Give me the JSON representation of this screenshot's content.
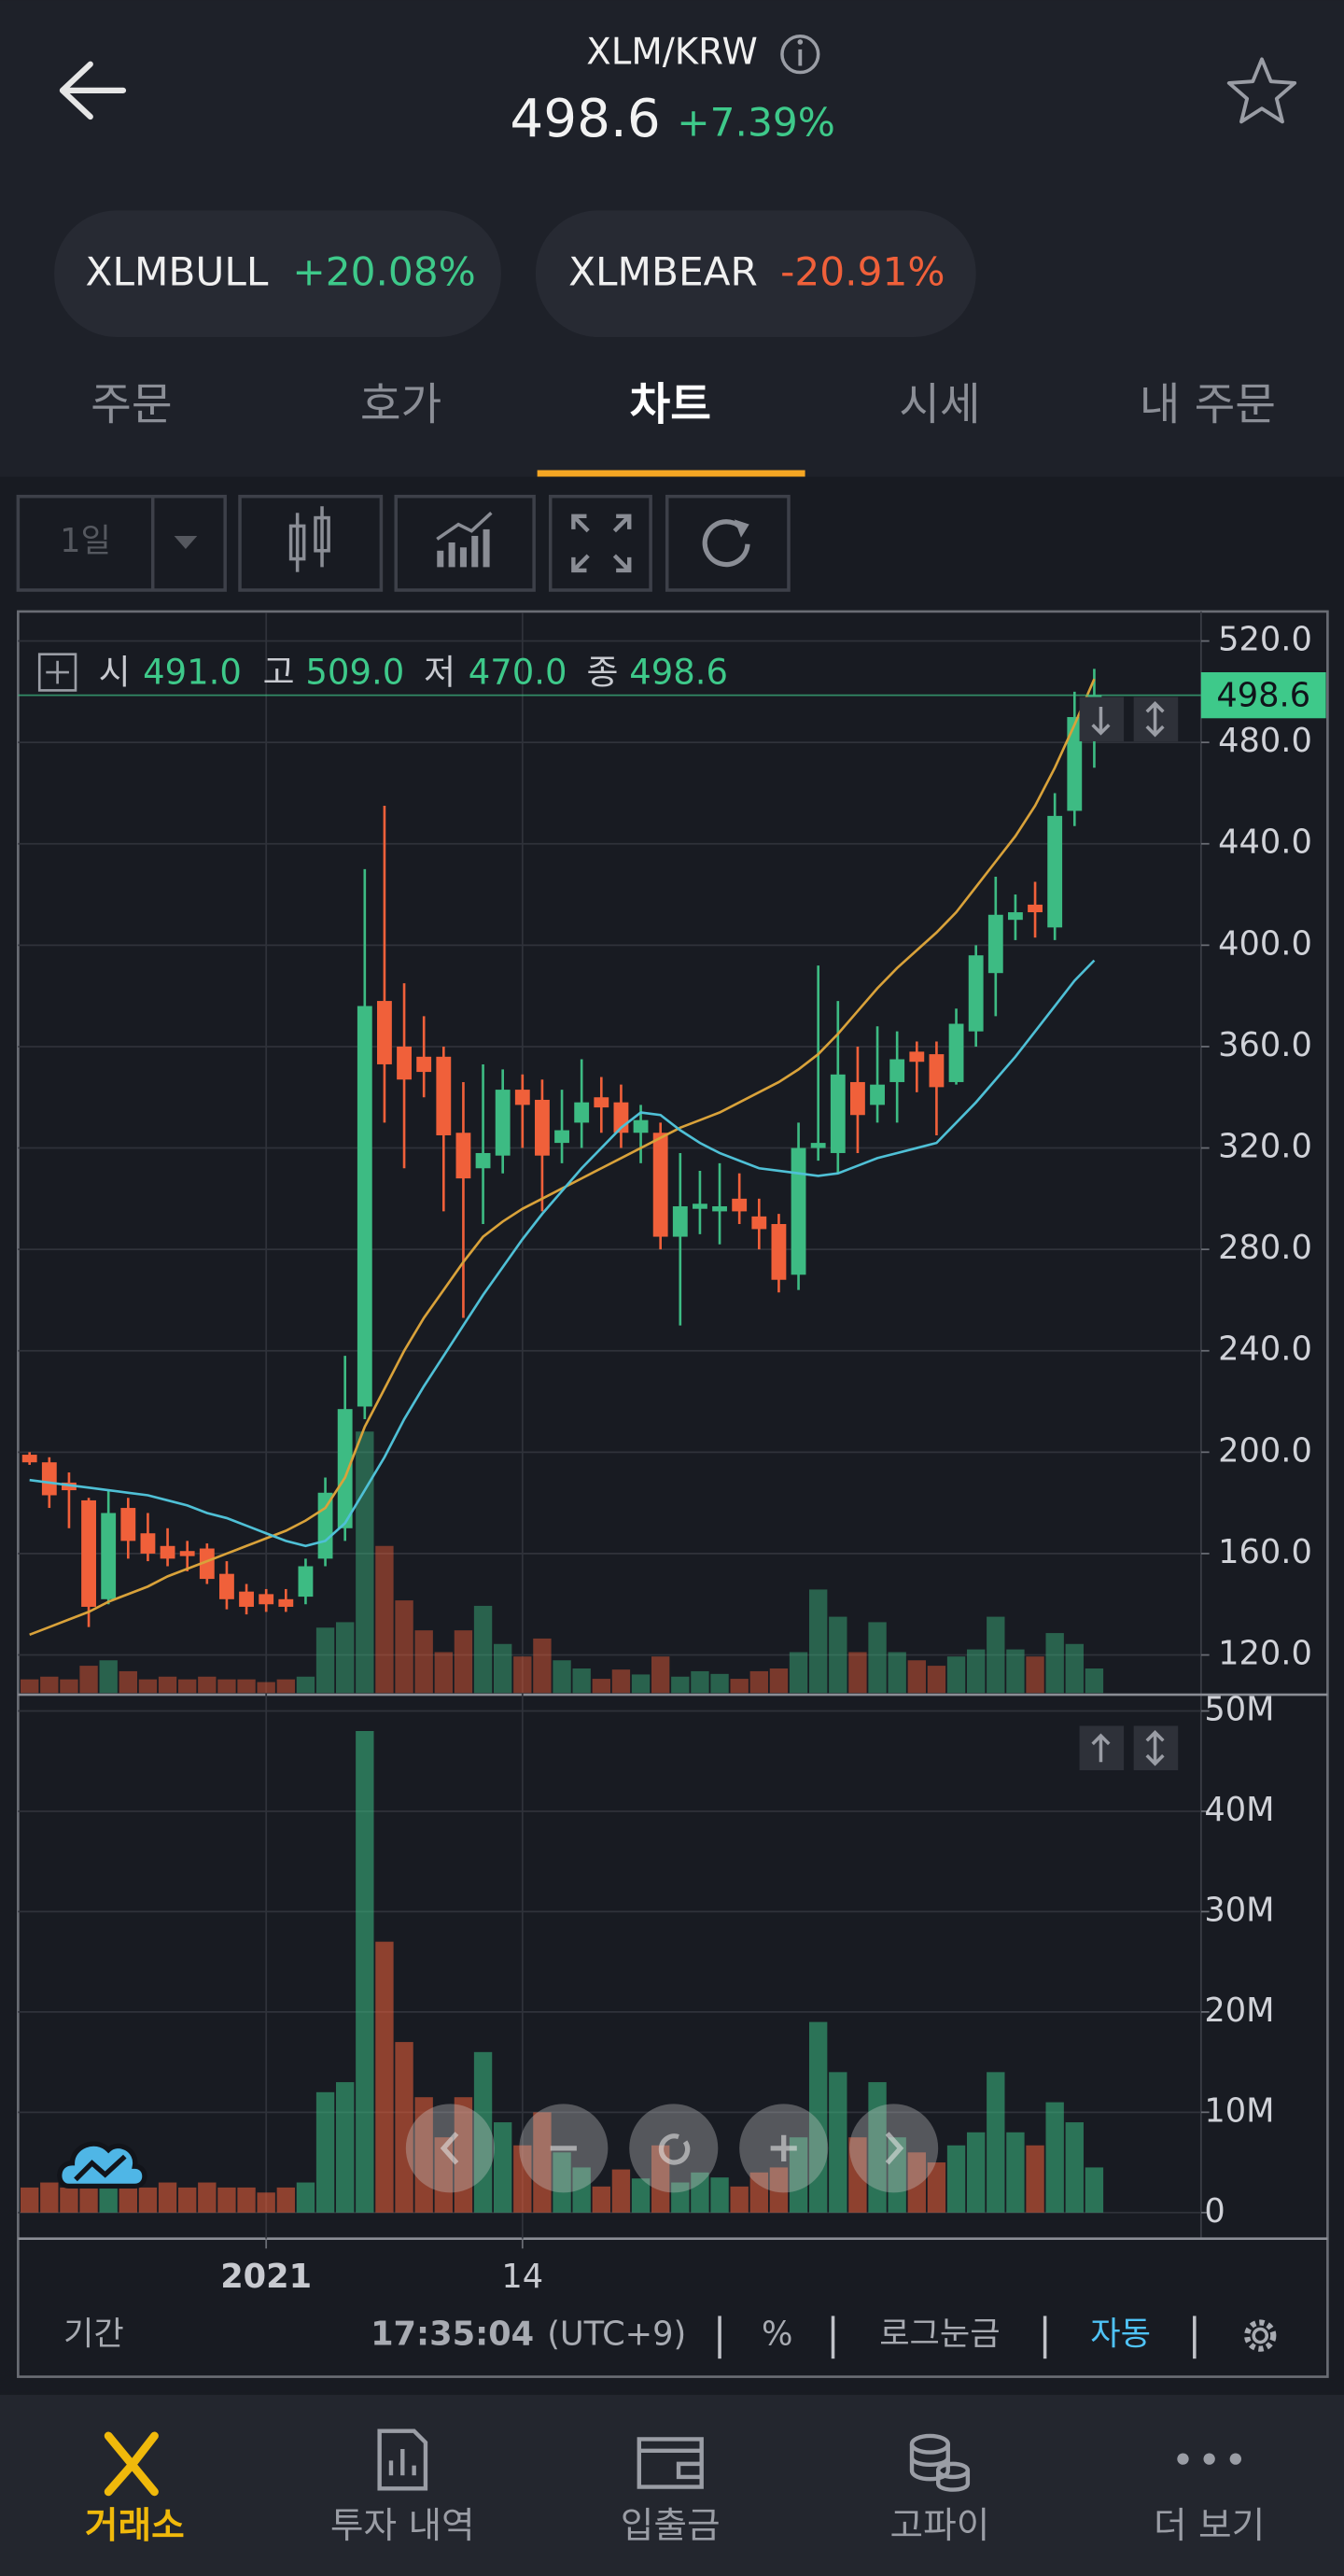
{
  "header": {
    "symbol": "XLM/KRW",
    "price": "498.6",
    "change": "+7.39%"
  },
  "tickers": [
    {
      "name": "XLMBULL",
      "change": "+20.08%"
    },
    {
      "name": "XLMBEAR",
      "change": "-20.91%"
    }
  ],
  "tabs": [
    "주문",
    "호가",
    "차트",
    "시세",
    "내 주문"
  ],
  "toolbar": {
    "interval": "1일"
  },
  "chart_data": [
    {
      "type": "candlestick",
      "up_color": "#3dbb83",
      "down_color": "#f0603a",
      "grid": true,
      "ohlc_legend": [
        {
          "label": "시",
          "value": "491.0"
        },
        {
          "label": "고",
          "value": "509.0"
        },
        {
          "label": "저",
          "value": "470.0"
        },
        {
          "label": "종",
          "value": "498.6"
        }
      ],
      "last_price": {
        "value": 498.6,
        "label": "498.6"
      },
      "ylim": [
        105,
        531
      ],
      "yticks": [
        {
          "value": 520,
          "label": "520.0"
        },
        {
          "value": 480,
          "label": "480.0"
        },
        {
          "value": 440,
          "label": "440.0"
        },
        {
          "value": 400,
          "label": "400.0"
        },
        {
          "value": 360,
          "label": "360.0"
        },
        {
          "value": 320,
          "label": "320.0"
        },
        {
          "value": 280,
          "label": "280.0"
        },
        {
          "value": 240,
          "label": "240.0"
        },
        {
          "value": 200,
          "label": "200.0"
        },
        {
          "value": 160,
          "label": "160.0"
        },
        {
          "value": 120,
          "label": "120.0"
        }
      ],
      "open": [
        199,
        196,
        188,
        181,
        142,
        178,
        168,
        163,
        161,
        162,
        152,
        145,
        144,
        142,
        143,
        158,
        170,
        218,
        378,
        360,
        356,
        356,
        326,
        312,
        317,
        343,
        339,
        322,
        330,
        340,
        338,
        326,
        326,
        285,
        296,
        295,
        300,
        293,
        290,
        270,
        320,
        318,
        346,
        337,
        346,
        358,
        357,
        346,
        366,
        389,
        410,
        416,
        407,
        453,
        491
      ],
      "high": [
        200,
        198,
        192,
        182,
        185,
        182,
        176,
        170,
        165,
        164,
        157,
        148,
        146,
        146,
        158,
        190,
        238,
        430,
        455,
        385,
        372,
        360,
        346,
        353,
        351,
        349,
        347,
        343,
        355,
        348,
        345,
        337,
        330,
        318,
        311,
        314,
        310,
        300,
        294,
        330,
        392,
        378,
        360,
        368,
        366,
        362,
        362,
        375,
        400,
        427,
        420,
        425,
        460,
        500,
        509
      ],
      "low": [
        195,
        178,
        170,
        131,
        140,
        158,
        157,
        155,
        153,
        148,
        138,
        136,
        137,
        137,
        140,
        155,
        165,
        213,
        330,
        312,
        340,
        295,
        253,
        290,
        310,
        320,
        295,
        314,
        320,
        326,
        320,
        314,
        280,
        250,
        286,
        282,
        290,
        280,
        263,
        264,
        315,
        310,
        318,
        330,
        330,
        342,
        325,
        345,
        360,
        372,
        402,
        403,
        402,
        447,
        470
      ],
      "close": [
        196,
        183,
        185,
        139,
        176,
        165,
        160,
        158,
        159,
        150,
        142,
        139,
        140,
        139,
        155,
        184,
        217,
        376,
        353,
        347,
        350,
        325,
        308,
        318,
        343,
        337,
        317,
        327,
        338,
        336,
        326,
        331,
        285,
        297,
        298,
        297,
        295,
        288,
        268,
        320,
        322,
        349,
        333,
        345,
        355,
        354,
        344,
        369,
        396,
        412,
        413,
        413,
        451,
        490,
        498.6
      ],
      "moving_averages": [
        {
          "color": "#d9a23a",
          "values": [
            128,
            131,
            134,
            137,
            141,
            144,
            147,
            151,
            154,
            157,
            160,
            163,
            166,
            169,
            173,
            178,
            190,
            210,
            225,
            240,
            253,
            264,
            275,
            285,
            291,
            296,
            300,
            304,
            308,
            312,
            316,
            320,
            324,
            328,
            331,
            334,
            338,
            342,
            346,
            351,
            357,
            365,
            374,
            383,
            391,
            398,
            405,
            413,
            423,
            433,
            443,
            455,
            470,
            487,
            505
          ]
        },
        {
          "color": "#4fc0d6",
          "values": [
            189,
            188,
            187,
            186,
            185,
            184,
            183,
            181,
            179,
            176,
            174,
            171,
            168,
            165,
            163,
            165,
            172,
            185,
            198,
            213,
            226,
            238,
            250,
            262,
            273,
            284,
            294,
            303,
            312,
            320,
            328,
            334,
            333,
            327,
            322,
            318,
            315,
            312,
            311,
            310,
            309,
            310,
            313,
            316,
            318,
            320,
            322,
            330,
            338,
            347,
            356,
            366,
            376,
            386,
            394
          ]
        }
      ]
    },
    {
      "type": "bar",
      "grid": true,
      "categories": [
        null,
        null,
        null,
        null,
        null,
        null,
        null,
        null,
        null,
        null,
        null,
        null,
        "2021",
        null,
        null,
        null,
        null,
        null,
        null,
        null,
        null,
        null,
        null,
        null,
        null,
        "14",
        null,
        null,
        null,
        null,
        null,
        null,
        null,
        null,
        null,
        null,
        null,
        null,
        null,
        null,
        null,
        null,
        null,
        null,
        null,
        null,
        null,
        null,
        null,
        null,
        null,
        null,
        null,
        null,
        null
      ],
      "values": [
        2500000,
        3000000,
        2500000,
        5000000,
        6000000,
        4000000,
        2500000,
        3000000,
        2500000,
        3000000,
        2500000,
        2500000,
        2000000,
        2500000,
        3000000,
        12000000,
        13000000,
        48000000,
        27000000,
        17000000,
        11500000,
        7500000,
        11500000,
        16000000,
        9000000,
        6700000,
        10000000,
        6000000,
        4500000,
        2600000,
        4300000,
        3400000,
        6700000,
        3000000,
        4000000,
        3500000,
        2600000,
        4000000,
        4500000,
        7500000,
        19000000,
        14000000,
        7500000,
        13000000,
        7500000,
        6000000,
        5000000,
        6700000,
        8000000,
        14000000,
        8000000,
        6700000,
        11000000,
        9000000,
        4500000
      ],
      "ylim": [
        -2600000,
        51300000
      ],
      "yticks": [
        {
          "value": 50000000,
          "label": "50M"
        },
        {
          "value": 40000000,
          "label": "40M"
        },
        {
          "value": 30000000,
          "label": "30M"
        },
        {
          "value": 20000000,
          "label": "20M"
        },
        {
          "value": 10000000,
          "label": "10M"
        },
        {
          "value": 0,
          "label": "0"
        }
      ]
    }
  ],
  "bottom_bar": {
    "period": "기간",
    "time": "17:35:04",
    "timezone": "(UTC+9)",
    "percent": "%",
    "log": "로그눈금",
    "auto": "자동"
  },
  "nav": [
    "거래소",
    "투자 내역",
    "입출금",
    "고파이",
    "더 보기"
  ]
}
